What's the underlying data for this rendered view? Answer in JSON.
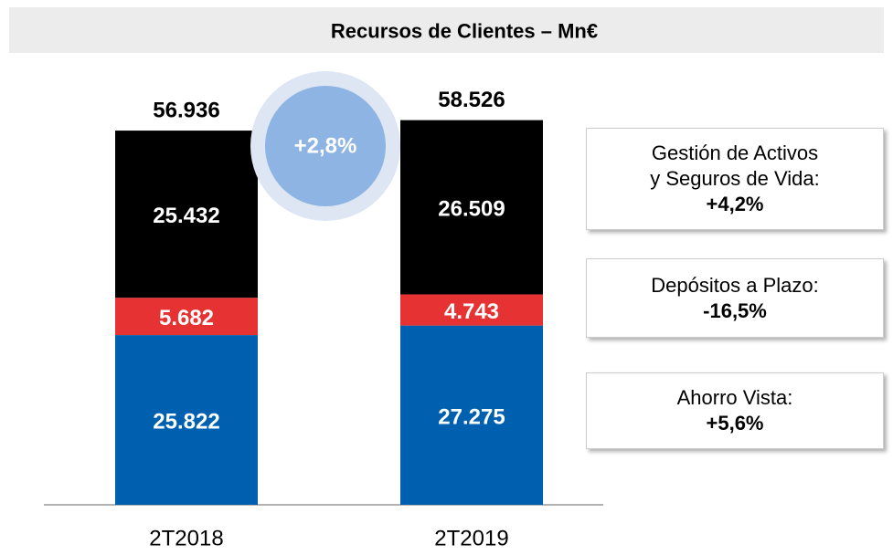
{
  "chart_data": {
    "type": "stacked_bar",
    "title": "Recursos de Clientes – Mn€",
    "categories": [
      "2T2018",
      "2T2019"
    ],
    "ylim": [
      0,
      60000
    ],
    "series": [
      {
        "name": "Ahorro Vista:",
        "color": "#0060b0",
        "values": [
          25822,
          27275
        ],
        "value_labels": [
          "25.822",
          "27.275"
        ],
        "change": "+5,6%"
      },
      {
        "name": "Depósitos a Plazo:",
        "color": "#e63232",
        "values": [
          5682,
          4743
        ],
        "value_labels": [
          "5.682",
          "4.743"
        ],
        "change": "-16,5%"
      },
      {
        "name": "Gestión de Activos y Seguros de Vida:",
        "color": "#000000",
        "values": [
          25432,
          26509
        ],
        "value_labels": [
          "25.432",
          "26.509"
        ],
        "change": "+4,2%"
      }
    ],
    "totals": {
      "values": [
        56936,
        58526
      ],
      "value_labels": [
        "56.936",
        "58.526"
      ]
    },
    "growth": "+2,8%"
  }
}
